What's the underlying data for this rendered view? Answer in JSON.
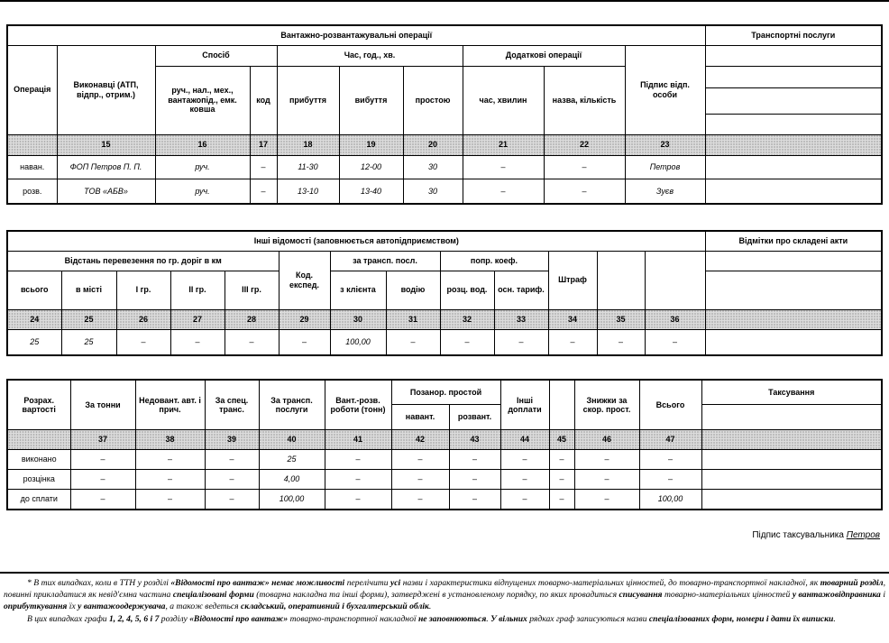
{
  "t1": {
    "title": "Вантажно-розвантажувальні операції",
    "services_title": "Транспортні послуги",
    "cols": {
      "operation": "Операція",
      "executors": "Виконавці (АТП, відпр., отрим.)",
      "group_method": "Спосіб",
      "group_time": "Час, год., хв.",
      "group_additional": "Додаткові операції",
      "method": "руч., нал., мех., вантажопід., емк. ковша",
      "code": "код",
      "arrival": "прибуття",
      "departure": "вибуття",
      "idle": "простою",
      "minutes": "час, хвилин",
      "name_qty": "назва, кількість",
      "sign": "Підпис відп. особи"
    },
    "nums": [
      "15",
      "16",
      "17",
      "18",
      "19",
      "20",
      "21",
      "22",
      "23"
    ],
    "rows": [
      {
        "op": "наван.",
        "executor": "ФОП Петров П. П.",
        "method": "руч.",
        "code": "–",
        "arrival": "11-30",
        "departure": "12-00",
        "idle": "30",
        "minutes": "–",
        "name_qty": "–",
        "sign": "Петров"
      },
      {
        "op": "розв.",
        "executor": "ТОВ «АБВ»",
        "method": "руч.",
        "code": "–",
        "arrival": "13-10",
        "departure": "13-40",
        "idle": "30",
        "minutes": "–",
        "name_qty": "–",
        "sign": "Зуєв"
      }
    ]
  },
  "t2": {
    "title": "Інші відомості (заповнюється автопідприємством)",
    "acts_title": "Відмітки про складені акти",
    "cols": {
      "group_distance": "Відстань перевезення по гр. доріг в км",
      "total": "всього",
      "in_city": "в місті",
      "g1": "І гр.",
      "g2": "ІІ гр.",
      "g3": "ІІІ гр.",
      "code_exp": "Код. експед.",
      "group_transp": "за трансп. посл.",
      "from_client": "з клієнта",
      "to_driver": "водію",
      "group_coef": "попр. коеф.",
      "rate_driver": "розц. вод.",
      "base_tariff": "осн. тариф.",
      "fine": "Штраф"
    },
    "nums": [
      "24",
      "25",
      "26",
      "27",
      "28",
      "29",
      "30",
      "31",
      "32",
      "33",
      "34",
      "35",
      "36"
    ],
    "row": [
      "25",
      "25",
      "–",
      "–",
      "–",
      "–",
      "100,00",
      "–",
      "–",
      "–",
      "–",
      "–",
      "–"
    ]
  },
  "t3": {
    "taxation_title": "Таксування",
    "cols": {
      "calc": "Розрах. вартості",
      "per_ton": "За тонни",
      "underload": "Недовант. авт. і прич.",
      "special": "За спец. транс.",
      "transp_services": "За трансп. послуги",
      "load_unload": "Вант.-розв. роботи (тонн)",
      "group_idle": "Позанор. простой",
      "idle_load": "навант.",
      "idle_unload": "розвант.",
      "other_pay": "Інші доплати",
      "discounts": "Знижки за скор. прост.",
      "total": "Всього"
    },
    "nums": [
      "37",
      "38",
      "39",
      "40",
      "41",
      "42",
      "43",
      "44",
      "45",
      "46",
      "47"
    ],
    "rows": [
      {
        "label": "виконано",
        "values": [
          "–",
          "–",
          "–",
          "25",
          "–",
          "–",
          "–",
          "–",
          "–",
          "–",
          "–"
        ]
      },
      {
        "label": "розцінка",
        "values": [
          "–",
          "–",
          "–",
          "4,00",
          "–",
          "–",
          "–",
          "–",
          "–",
          "–",
          "–"
        ]
      },
      {
        "label": "до сплати",
        "values": [
          "–",
          "–",
          "–",
          "100,00",
          "–",
          "–",
          "–",
          "–",
          "–",
          "–",
          "100,00"
        ]
      }
    ]
  },
  "signature": {
    "label": "Підпис таксувальника",
    "name": "Петров"
  },
  "footnote": {
    "p1": [
      {
        "t": "* В тих випадках, коли в ТТН у розділі ",
        "b": false
      },
      {
        "t": "«Відомості про вантаж» немає можливості",
        "b": true
      },
      {
        "t": " перелічити ",
        "b": false
      },
      {
        "t": "усі",
        "b": true
      },
      {
        "t": " назви і характеристики відпущених товарно-матеріальних цінностей, до товарно-транспортної накладної, як ",
        "b": false
      },
      {
        "t": "товарний розділ",
        "b": true
      },
      {
        "t": ", повинні прикладатися як невід'ємна частина ",
        "b": false
      },
      {
        "t": "спеціалізовані форми",
        "b": true
      },
      {
        "t": " (товарна накладна та інші форми), затверджені в установленому порядку, по яких провадиться ",
        "b": false
      },
      {
        "t": "списування",
        "b": true
      },
      {
        "t": " товарно-матеріальних цінностей ",
        "b": false
      },
      {
        "t": "у вантажовідправника",
        "b": true
      },
      {
        "t": " і ",
        "b": false
      },
      {
        "t": "оприбуткування",
        "b": true
      },
      {
        "t": " їх ",
        "b": false
      },
      {
        "t": "у вантажоодержувача",
        "b": true
      },
      {
        "t": ", а також ведеться ",
        "b": false
      },
      {
        "t": "складський, оперативний і бухгалтерський облік",
        "b": true
      },
      {
        "t": ".",
        "b": false
      }
    ],
    "p2": [
      {
        "t": "В цих випадках графи ",
        "b": false
      },
      {
        "t": "1, 2, 4, 5, 6 і 7",
        "b": true
      },
      {
        "t": " розділу ",
        "b": false
      },
      {
        "t": "«Відомості про вантаж»",
        "b": true
      },
      {
        "t": " товарно-транспортної накладної ",
        "b": false
      },
      {
        "t": "не заповнюються",
        "b": true
      },
      {
        "t": ". ",
        "b": false
      },
      {
        "t": "У вільних",
        "b": true
      },
      {
        "t": " рядках граф записуються назви ",
        "b": false
      },
      {
        "t": "спеціалізованих форм, номери і дати",
        "b": true
      },
      {
        "t": " ",
        "b": false
      },
      {
        "t": "їх виписки",
        "b": true
      },
      {
        "t": ".",
        "b": false
      }
    ]
  }
}
